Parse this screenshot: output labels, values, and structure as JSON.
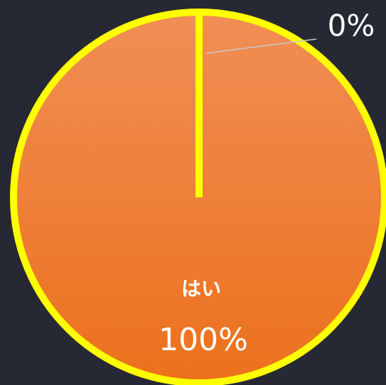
{
  "chart_data": {
    "type": "pie",
    "categories": [
      "はい",
      null
    ],
    "values": [
      100,
      0
    ],
    "value_labels": [
      "100%",
      "0%"
    ],
    "colors": [
      "#f07d2c",
      "#f08c50"
    ],
    "border_color": "#ffff00"
  }
}
